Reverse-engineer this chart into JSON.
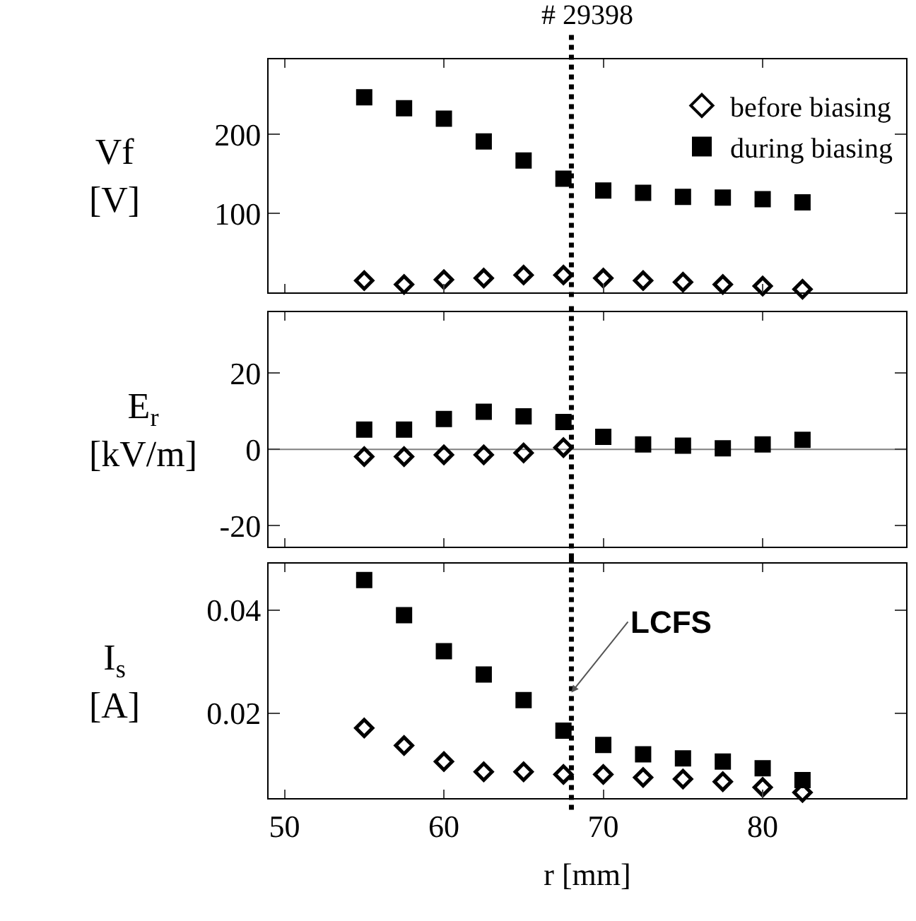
{
  "chart_data": [
    {
      "type": "scatter",
      "title": "# 29398",
      "ylabel": "Vf [V]",
      "x": [
        55,
        57.5,
        60,
        62.5,
        65,
        67.5,
        70,
        72.5,
        75,
        77.5,
        80,
        82.5
      ],
      "xlim": [
        49,
        89
      ],
      "xticks": [
        50,
        60,
        70,
        80
      ],
      "ylim": [
        0,
        295
      ],
      "yticks": [
        100,
        200
      ],
      "tick_labels": "y",
      "grid": false,
      "legend": "top right",
      "series": [
        {
          "name": "before biasing",
          "color": "#000000",
          "marker": "diamond",
          "values": [
            15,
            10,
            16,
            18,
            22,
            22,
            18,
            15,
            13,
            10,
            8,
            4
          ]
        },
        {
          "name": "during biasing",
          "color": "#000000",
          "marker": "square",
          "values": [
            247,
            233,
            220,
            191,
            167,
            144,
            129,
            126,
            121,
            120,
            118,
            114
          ]
        }
      ],
      "ref_lines": [
        {
          "axis": "x",
          "value": 68,
          "line_style": "dotted",
          "color": "#000000"
        }
      ]
    },
    {
      "type": "scatter",
      "ylabel": "E$_{r}$ [kV/m]",
      "x": [
        55,
        57.5,
        60,
        62.5,
        65,
        67.5,
        70,
        72.5,
        75,
        77.5,
        80,
        82.5
      ],
      "xlim": [
        49,
        89
      ],
      "xticks": [
        50,
        60,
        70,
        80
      ],
      "ylim": [
        -25.5,
        36
      ],
      "yticks": [
        -20,
        0,
        20
      ],
      "tick_labels": "y",
      "grid": false,
      "series": [
        {
          "color": "#000000",
          "marker": "diamond",
          "values": [
            -1.9,
            -1.9,
            -1.4,
            -1.4,
            -0.9,
            0.5,
            null,
            null,
            null,
            null,
            null,
            null
          ]
        },
        {
          "color": "#000000",
          "marker": "square",
          "values": [
            5.2,
            5.2,
            8,
            9.9,
            8.7,
            7.2,
            3.3,
            1.3,
            1,
            0.3,
            1.3,
            2.5
          ]
        }
      ],
      "ref_lines": [
        {
          "axis": "x",
          "value": 68,
          "line_style": "dotted",
          "color": "#000000"
        },
        {
          "axis": "y",
          "value": 0,
          "line_style": "solid",
          "color": "#808080"
        }
      ]
    },
    {
      "type": "scatter",
      "ylabel": "I$_{s}$ [A]",
      "xlabel": "r [mm]",
      "x": [
        55,
        57.5,
        60,
        62.5,
        65,
        67.5,
        70,
        72.5,
        75,
        77.5,
        80,
        82.5
      ],
      "xlim": [
        49,
        89
      ],
      "xticks": [
        50,
        60,
        70,
        80
      ],
      "ylim": [
        0.0035,
        0.049
      ],
      "yticks": [
        0.02,
        0.04
      ],
      "grid": false,
      "series": [
        {
          "color": "#000000",
          "marker": "diamond",
          "values": [
            0.0171,
            0.0137,
            0.0106,
            0.0086,
            0.0086,
            0.0081,
            0.0081,
            0.0075,
            0.0072,
            0.0067,
            0.0056,
            0.0046
          ]
        },
        {
          "color": "#000000",
          "marker": "square",
          "values": [
            0.0458,
            0.039,
            0.032,
            0.0275,
            0.0225,
            0.0166,
            0.0138,
            0.012,
            0.0112,
            0.0106,
            0.0093,
            0.007
          ]
        }
      ],
      "ref_lines": [
        {
          "axis": "x",
          "value": 68,
          "line_style": "dotted",
          "color": "#000000"
        }
      ],
      "annotations": [
        {
          "text": "LCFS",
          "x": 68,
          "y": 0.024
        }
      ]
    }
  ]
}
